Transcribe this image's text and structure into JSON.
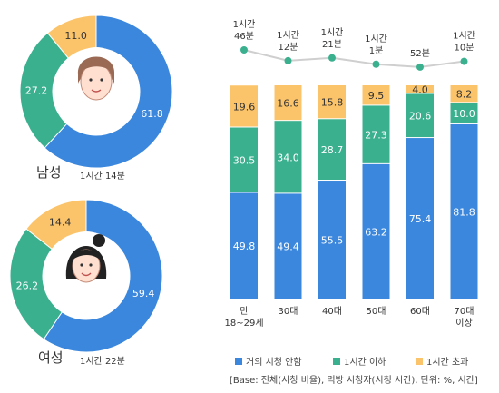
{
  "colors": {
    "blue": "#3a87dd",
    "green": "#3bb08f",
    "yellow": "#fcc46a",
    "line": "#3bb08f",
    "connector": "#cfcfcf"
  },
  "donuts": [
    {
      "gender": "남성",
      "time": "1시간 14분",
      "values": [
        61.8,
        27.2,
        11.0
      ],
      "labels": [
        "61.8",
        "27.2",
        "11.0"
      ],
      "icon": "male-avatar-icon"
    },
    {
      "gender": "여성",
      "time": "1시간 22분",
      "values": [
        59.4,
        26.2,
        14.4
      ],
      "labels": [
        "59.4",
        "26.2",
        "14.4"
      ],
      "icon": "female-avatar-icon"
    }
  ],
  "chart_data": {
    "type": "bar",
    "stacked": true,
    "categories": [
      "만\n18~29세",
      "30대",
      "40대",
      "50대",
      "60대",
      "70대\n이상"
    ],
    "series": [
      {
        "name": "거의 시청 안함",
        "values": [
          49.8,
          49.4,
          55.5,
          63.2,
          75.4,
          81.8
        ]
      },
      {
        "name": "1시간 이하",
        "values": [
          30.5,
          34.0,
          28.7,
          27.3,
          20.6,
          10.0
        ]
      },
      {
        "name": "1시간 초과",
        "values": [
          19.6,
          16.6,
          15.8,
          9.5,
          4.0,
          8.2
        ]
      }
    ],
    "line_labels": [
      "1시간\n46분",
      "1시간\n12분",
      "1시간\n21분",
      "1시간\n1분",
      "52분",
      "1시간\n10분"
    ],
    "line_minutes": [
      106,
      72,
      81,
      61,
      52,
      70
    ],
    "ylim": [
      0,
      100
    ]
  },
  "base_note": "[Base: 전체(시청 비율), 먹방 시청자(시청 시간), 단위: %, 시간]"
}
